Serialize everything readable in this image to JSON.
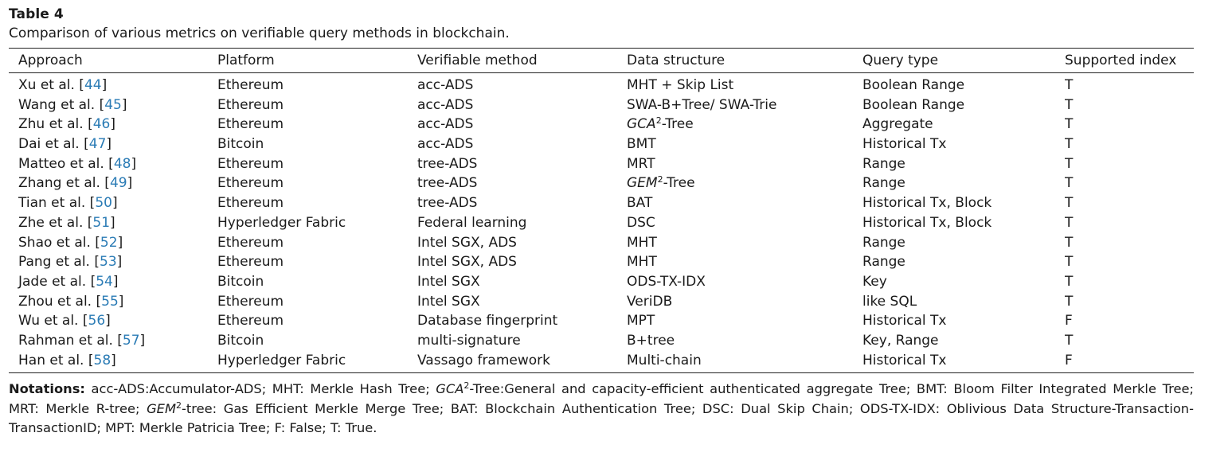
{
  "table_label": "Table 4",
  "caption": "Comparison of various metrics on verifiable query methods in blockchain.",
  "headers": [
    "Approach",
    "Platform",
    "Verifiable method",
    "Data structure",
    "Query type",
    "Supported index"
  ],
  "rows": [
    {
      "author": "Xu et al.",
      "ref": "44",
      "platform": "Ethereum",
      "method": "acc-ADS",
      "ds": "MHT + Skip List",
      "query": "Boolean Range",
      "index": "T"
    },
    {
      "author": "Wang et al.",
      "ref": "45",
      "platform": "Ethereum",
      "method": "acc-ADS",
      "ds": "SWA-B+Tree/ SWA-Trie",
      "query": "Boolean Range",
      "index": "T"
    },
    {
      "author": "Zhu et al.",
      "ref": "46",
      "platform": "Ethereum",
      "method": "acc-ADS",
      "ds_italic": "GCA",
      "ds_sup": "2",
      "ds_suffix": "-Tree",
      "query": "Aggregate",
      "index": "T"
    },
    {
      "author": "Dai et al.",
      "ref": "47",
      "platform": "Bitcoin",
      "method": "acc-ADS",
      "ds": "BMT",
      "query": "Historical Tx",
      "index": "T"
    },
    {
      "author": "Matteo et al.",
      "ref": "48",
      "platform": "Ethereum",
      "method": "tree-ADS",
      "ds": "MRT",
      "query": "Range",
      "index": "T"
    },
    {
      "author": "Zhang et al.",
      "ref": "49",
      "platform": "Ethereum",
      "method": "tree-ADS",
      "ds_italic": "GEM",
      "ds_sup": "2",
      "ds_suffix": "-Tree",
      "query": "Range",
      "index": "T"
    },
    {
      "author": "Tian et al.",
      "ref": "50",
      "platform": "Ethereum",
      "method": "tree-ADS",
      "ds": "BAT",
      "query": "Historical Tx, Block",
      "index": "T"
    },
    {
      "author": "Zhe et al.",
      "ref": "51",
      "platform": "Hyperledger Fabric",
      "method": "Federal learning",
      "ds": "DSC",
      "query": "Historical Tx, Block",
      "index": "T"
    },
    {
      "author": "Shao et al.",
      "ref": "52",
      "platform": "Ethereum",
      "method": "Intel SGX, ADS",
      "ds": "MHT",
      "query": "Range",
      "index": "T"
    },
    {
      "author": "Pang et al.",
      "ref": "53",
      "platform": "Ethereum",
      "method": "Intel SGX, ADS",
      "ds": "MHT",
      "query": "Range",
      "index": "T"
    },
    {
      "author": "Jade et al.",
      "ref": "54",
      "platform": "Bitcoin",
      "method": "Intel SGX",
      "ds": "ODS-TX-IDX",
      "query": "Key",
      "index": "T"
    },
    {
      "author": "Zhou et al.",
      "ref": "55",
      "platform": "Ethereum",
      "method": "Intel SGX",
      "ds": "VeriDB",
      "query": "like SQL",
      "index": "T"
    },
    {
      "author": "Wu et al.",
      "ref": "56",
      "platform": "Ethereum",
      "method": "Database fingerprint",
      "ds": "MPT",
      "query": "Historical Tx",
      "index": "F"
    },
    {
      "author": "Rahman et al.",
      "ref": "57",
      "platform": "Bitcoin",
      "method": "multi-signature",
      "ds": "B+tree",
      "query": "Key, Range",
      "index": "T"
    },
    {
      "author": "Han et al.",
      "ref": "58",
      "platform": "Hyperledger Fabric",
      "method": "Vassago framework",
      "ds": "Multi-chain",
      "query": "Historical Tx",
      "index": "F"
    }
  ],
  "notes": {
    "label": "Notations:",
    "part1": " acc-ADS:Accumulator-ADS; MHT: Merkle Hash Tree; ",
    "gca": "GCA",
    "gca_sup": "2",
    "part2": "-Tree:General and capacity-efficient authenticated aggregate Tree; BMT: Bloom Filter Integrated Merkle Tree; MRT: Merkle R-tree; ",
    "gem": "GEM",
    "gem_sup": "2",
    "part3": "-tree: Gas Efficient Merkle Merge Tree; BAT: Blockchain Authentication Tree; DSC: Dual Skip Chain; ODS-TX-IDX: Oblivious Data Structure-Transaction-TransactionID; MPT: Merkle Patricia Tree; F: False; T: True."
  }
}
